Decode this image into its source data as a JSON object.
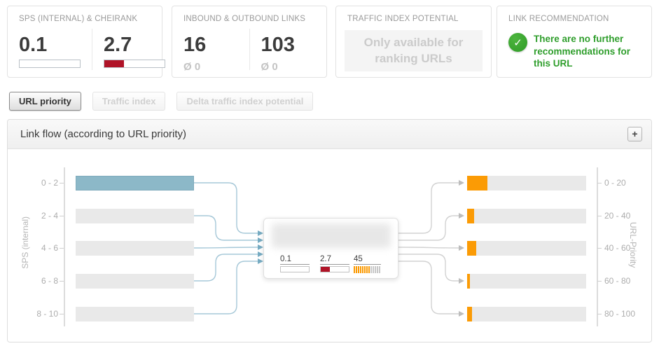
{
  "cards": {
    "sps": {
      "title": "SPS (INTERNAL) & CHEIRANK",
      "left_value": "0.1",
      "left_fill_pct": 0,
      "right_value": "2.7",
      "right_fill_pct": 33,
      "fill_color": "#b01327"
    },
    "links": {
      "title": "INBOUND & OUTBOUND LINKS",
      "left_value": "16",
      "left_sub": "Ø 0",
      "right_value": "103",
      "right_sub": "Ø 0"
    },
    "traffic": {
      "title": "TRAFFIC INDEX POTENTIAL",
      "message": "Only available for ranking URLs"
    },
    "recommendation": {
      "title": "LINK RECOMMENDATION",
      "message": "There are no further recommendations for this URL",
      "icon": "check-circle-icon",
      "accent_color": "#2f9e2c",
      "check_glyph": "✓"
    }
  },
  "tabs": [
    {
      "label": "URL priority",
      "state": "active"
    },
    {
      "label": "Traffic index",
      "state": "disabled"
    },
    {
      "label": "Delta traffic index potential",
      "state": "disabled"
    }
  ],
  "panel": {
    "title": "Link flow (according to URL priority)",
    "expand_label": "+"
  },
  "chart_data": {
    "type": "sankey-flow",
    "title": "Link flow (according to URL priority)",
    "left_axis": {
      "label": "SPS (internal)",
      "categories": [
        "0 - 2",
        "2 - 4",
        "4 - 6",
        "6 - 8",
        "8 - 10"
      ],
      "highlight_index": 0,
      "highlight_color": "#8cb8c8",
      "bar_color": "#e9e9e9"
    },
    "right_axis": {
      "label": "URL-Priority",
      "categories": [
        "0 - 20",
        "20 - 40",
        "40 - 60",
        "60 - 80",
        "80 - 100"
      ],
      "orange_fractions": [
        0.17,
        0.059,
        0.076,
        0.024,
        0.041
      ],
      "orange_color": "#fb9b05"
    },
    "node": {
      "stats": [
        {
          "value": "0.1",
          "type": "bar",
          "fill_pct": 0
        },
        {
          "value": "2.7",
          "type": "bar",
          "fill_pct": 33
        },
        {
          "value": "45",
          "type": "striped",
          "orange_stripes": 8,
          "gray_stripes": 5
        }
      ]
    },
    "flow_colors": {
      "left_line": "#a6c8d8",
      "left_arrow": "#76abc2",
      "right_line": "#d2d2d2",
      "right_arrow": "#bdbdbd"
    }
  }
}
